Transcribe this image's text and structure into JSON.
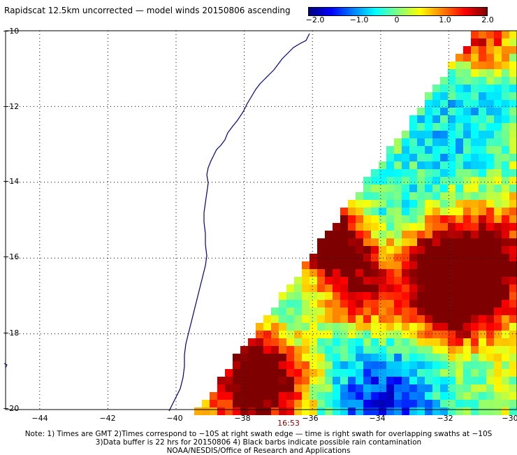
{
  "title": "Rapidscat 12.5km uncorrected — model winds 20150806 ascending",
  "colorbar": {
    "ticks": [
      "−2.0",
      "−1.0",
      "0",
      "1.0",
      "2.0"
    ],
    "min": -2.0,
    "max": 2.0,
    "colors": [
      "#00007f",
      "#0000ff",
      "#0080ff",
      "#00ffff",
      "#80ff80",
      "#ffff00",
      "#ff8000",
      "#ff0000",
      "#7f0000"
    ]
  },
  "map": {
    "lon_range": [
      -45,
      -30
    ],
    "lat_range": [
      -20,
      -10
    ],
    "lon_ticks": [
      "−44",
      "−42",
      "−40",
      "−38",
      "−36",
      "−34",
      "−32",
      "−30"
    ],
    "lat_ticks": [
      "−10",
      "−12",
      "−14",
      "−16",
      "−18",
      "−20"
    ],
    "grid": true,
    "swath_time": "16:53"
  },
  "notes": {
    "line1": "Note: 1) Times are GMT 2)Times correspond to −10S at right swath edge — time is right swath for overlapping swaths at −10S",
    "line2": "3)Data buffer is 22 hrs for 20150806 4) Black barbs indicate possible rain contamination",
    "line3": "NOAA/NESDIS/Office of Research and Applications"
  }
}
